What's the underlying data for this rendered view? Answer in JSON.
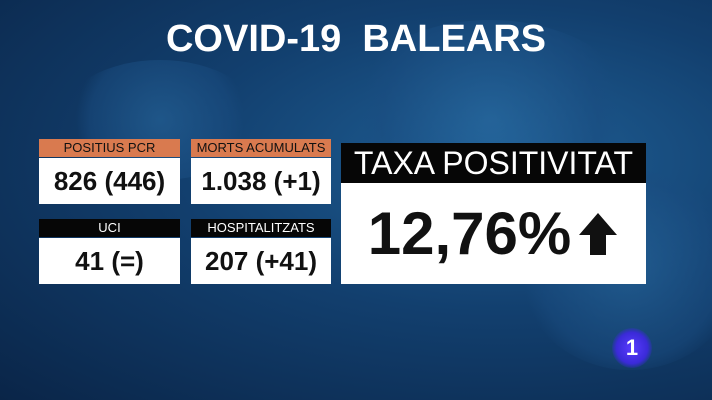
{
  "title": "COVID-19  BALEARS",
  "stats": [
    {
      "label": "POSITIUS PCR",
      "value": "826 (446)",
      "header_color": "#d97a4f"
    },
    {
      "label": "MORTS ACUMULATS",
      "value": "1.038 (+1)",
      "header_color": "#d97a4f"
    },
    {
      "label": "UCI",
      "value": "41 (=)",
      "header_color": "#060606"
    },
    {
      "label": "HOSPITALITZATS",
      "value": "207 (+41)",
      "header_color": "#060606"
    }
  ],
  "positivity": {
    "label": "TAXA POSITIVITAT",
    "value": "12,76%",
    "trend_icon": "arrow-up-icon"
  },
  "channel_logo": "1"
}
